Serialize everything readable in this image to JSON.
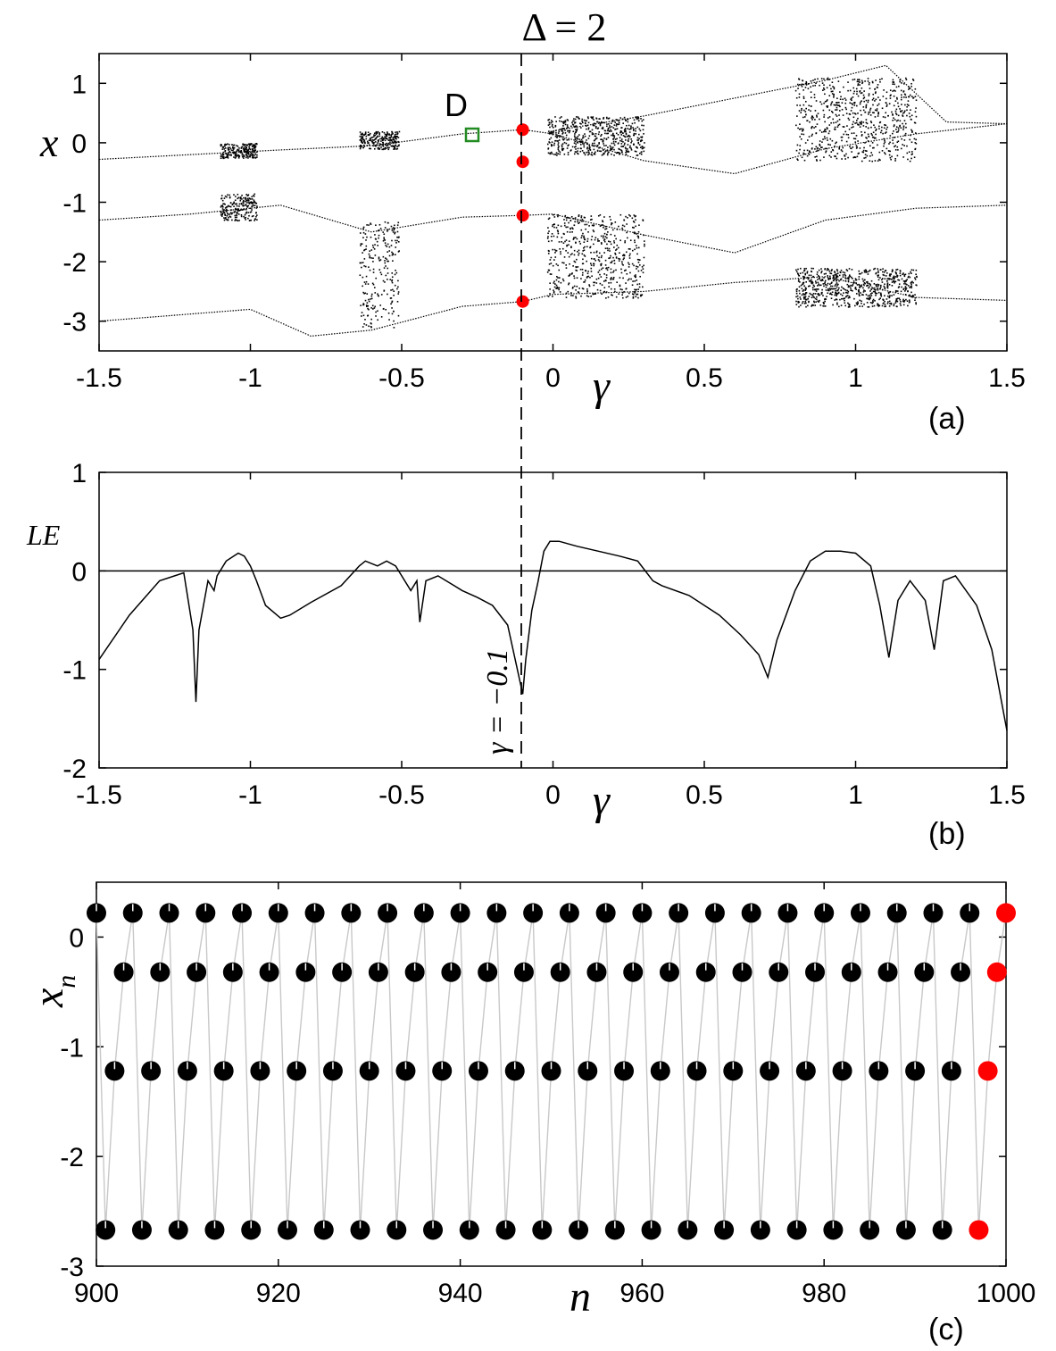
{
  "figure": {
    "title": "Δ = 2",
    "colors": {
      "marker_red": "#ff0000",
      "marker_green": "#228b22",
      "black": "#000000",
      "connector": "#c8c8c8"
    }
  },
  "chart_data": [
    {
      "id": "a",
      "type": "scatter",
      "panel_label": "(a)",
      "xlabel": "γ",
      "ylabel": "x",
      "xlim": [
        -1.5,
        1.5
      ],
      "ylim": [
        -3.5,
        1.5
      ],
      "xticks": [
        "-1.5",
        "-1",
        "-0.5",
        "0",
        "0.5",
        "1",
        "1.5"
      ],
      "yticks": [
        "1",
        "0",
        "-1",
        "-2",
        "-3"
      ],
      "marked_gamma": -0.1,
      "highlight_points": [
        {
          "x": -0.1,
          "y": 0.22
        },
        {
          "x": -0.1,
          "y": -0.32
        },
        {
          "x": -0.1,
          "y": -1.22
        },
        {
          "x": -0.1,
          "y": -2.67
        }
      ],
      "annotation": {
        "label": "D",
        "x": -0.27,
        "y": 0.14
      },
      "branches": [
        {
          "name": "upper-branch",
          "x": [
            -1.5,
            -1.2,
            -0.9,
            -0.6,
            -0.3,
            -0.1,
            0.0,
            0.3,
            0.6,
            0.9,
            1.2,
            1.5
          ],
          "y": [
            -0.28,
            -0.2,
            -0.12,
            -0.05,
            0.15,
            0.22,
            0.15,
            -0.3,
            -0.52,
            -0.1,
            0.15,
            0.32
          ]
        },
        {
          "name": "lower-branch",
          "x": [
            -1.5,
            -1.2,
            -0.9,
            -0.6,
            -0.3,
            -0.1,
            0.0,
            0.3,
            0.6,
            0.9,
            1.2,
            1.5
          ],
          "y": [
            -1.3,
            -1.2,
            -1.05,
            -1.5,
            -1.25,
            -1.22,
            -1.2,
            -1.55,
            -1.85,
            -1.3,
            -1.1,
            -1.05
          ]
        },
        {
          "name": "bottom-branch",
          "x": [
            -1.5,
            -1.0,
            -0.8,
            -0.6,
            -0.3,
            -0.1,
            0.0,
            0.3,
            0.6,
            0.9,
            1.2,
            1.5
          ],
          "y": [
            -3.0,
            -2.8,
            -3.25,
            -3.15,
            -2.75,
            -2.67,
            -2.55,
            -2.5,
            -2.35,
            -2.25,
            -2.6,
            -2.65
          ]
        },
        {
          "name": "top-branch",
          "x": [
            0.0,
            0.3,
            0.6,
            0.9,
            1.1,
            1.3,
            1.5
          ],
          "y": [
            0.2,
            0.45,
            0.75,
            1.05,
            1.3,
            0.35,
            0.32
          ]
        }
      ],
      "chaotic_bands": [
        {
          "x_range": [
            -1.1,
            -0.98
          ],
          "y_ranges": [
            [
              -0.25,
              0.0
            ],
            [
              -1.3,
              -0.85
            ]
          ]
        },
        {
          "x_range": [
            -0.64,
            -0.51
          ],
          "y_ranges": [
            [
              -0.1,
              0.2
            ],
            [
              -3.1,
              -1.3
            ]
          ]
        },
        {
          "x_range": [
            -0.02,
            0.3
          ],
          "y_ranges": [
            [
              -0.2,
              0.45
            ],
            [
              -2.6,
              -1.2
            ]
          ]
        },
        {
          "x_range": [
            0.8,
            1.2
          ],
          "y_ranges": [
            [
              -0.3,
              1.1
            ],
            [
              -2.75,
              -2.1
            ]
          ]
        }
      ]
    },
    {
      "id": "b",
      "type": "line",
      "panel_label": "(b)",
      "xlabel": "γ",
      "ylabel": "LE",
      "xlim": [
        -1.5,
        1.5
      ],
      "ylim": [
        -2,
        1
      ],
      "xticks": [
        "-1.5",
        "-1",
        "-0.5",
        "0",
        "0.5",
        "1",
        "1.5"
      ],
      "yticks": [
        "1",
        "0",
        "-1",
        "-2"
      ],
      "marked_gamma": -0.1,
      "annotation_text": "γ = −0.1",
      "series": [
        {
          "name": "LE",
          "x": [
            -1.5,
            -1.4,
            -1.3,
            -1.22,
            -1.19,
            -1.18,
            -1.17,
            -1.14,
            -1.12,
            -1.11,
            -1.08,
            -1.04,
            -1.02,
            -1.0,
            -0.98,
            -0.95,
            -0.9,
            -0.87,
            -0.8,
            -0.7,
            -0.64,
            -0.62,
            -0.58,
            -0.55,
            -0.52,
            -0.5,
            -0.47,
            -0.45,
            -0.44,
            -0.42,
            -0.38,
            -0.3,
            -0.25,
            -0.2,
            -0.15,
            -0.1,
            -0.09,
            -0.07,
            -0.05,
            -0.03,
            -0.01,
            0.02,
            0.08,
            0.15,
            0.22,
            0.28,
            0.33,
            0.36,
            0.45,
            0.55,
            0.62,
            0.68,
            0.71,
            0.74,
            0.8,
            0.85,
            0.9,
            0.95,
            1.0,
            1.05,
            1.08,
            1.11,
            1.14,
            1.18,
            1.23,
            1.26,
            1.29,
            1.33,
            1.4,
            1.45,
            1.5
          ],
          "y": [
            -0.9,
            -0.45,
            -0.1,
            -0.02,
            -0.6,
            -1.33,
            -0.6,
            -0.1,
            -0.2,
            -0.05,
            0.1,
            0.18,
            0.15,
            0.05,
            -0.1,
            -0.35,
            -0.48,
            -0.45,
            -0.32,
            -0.15,
            0.05,
            0.1,
            0.05,
            0.1,
            0.05,
            -0.05,
            -0.2,
            -0.1,
            -0.52,
            -0.1,
            -0.05,
            -0.2,
            -0.27,
            -0.35,
            -0.55,
            -1.25,
            -0.9,
            -0.4,
            -0.12,
            0.2,
            0.3,
            0.3,
            0.25,
            0.2,
            0.15,
            0.1,
            -0.1,
            -0.15,
            -0.25,
            -0.45,
            -0.65,
            -0.85,
            -1.08,
            -0.7,
            -0.2,
            0.1,
            0.2,
            0.2,
            0.18,
            0.05,
            -0.35,
            -0.88,
            -0.3,
            -0.1,
            -0.3,
            -0.8,
            -0.1,
            -0.05,
            -0.35,
            -0.8,
            -1.62
          ]
        }
      ]
    },
    {
      "id": "c",
      "type": "scatter",
      "panel_label": "(c)",
      "xlabel": "n",
      "ylabel": "x_n",
      "ylabel_main": "x",
      "ylabel_sub": "n",
      "xlim": [
        900,
        1000
      ],
      "ylim": [
        -3,
        0.5
      ],
      "xticks": [
        "900",
        "920",
        "940",
        "960",
        "980",
        "1000"
      ],
      "yticks": [
        "0",
        "-1",
        "-2",
        "-3"
      ],
      "cycle_values": [
        0.22,
        -0.32,
        -1.22,
        -2.67
      ],
      "n_start": 900,
      "n_end": 1000,
      "red_points": [
        {
          "n": 997,
          "x": -2.67
        },
        {
          "n": 998,
          "x": -1.22
        },
        {
          "n": 999,
          "x": -0.32
        },
        {
          "n": 1000,
          "x": 0.22
        }
      ]
    }
  ]
}
